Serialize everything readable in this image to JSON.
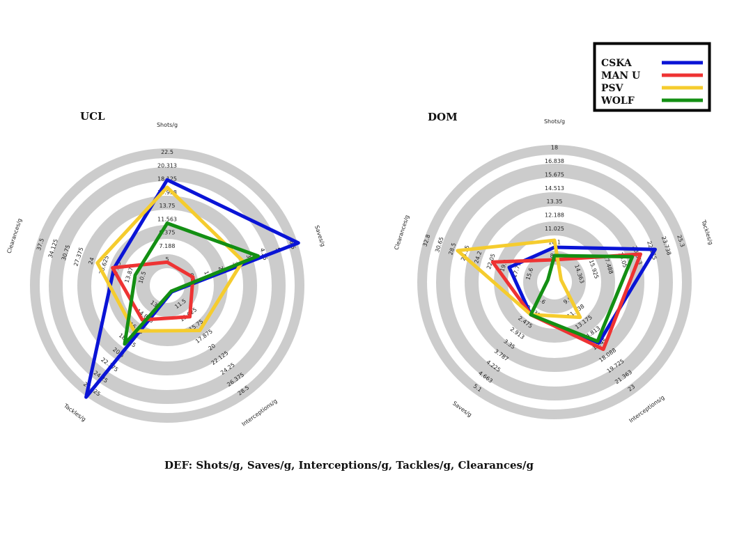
{
  "caption": "DEF: Shots/g, Saves/g, Interceptions/g, Tackles/g, Clearances/g",
  "legend": [
    {
      "name": "CSKA",
      "color": "#0a14d6"
    },
    {
      "name": "MAN U",
      "color": "#ee3333"
    },
    {
      "name": "PSV",
      "color": "#f5cc2e"
    },
    {
      "name": "WOLF",
      "color": "#138f13"
    }
  ],
  "chart_data": [
    {
      "type": "radar",
      "title": "UCL",
      "axes": [
        {
          "label": "Shots/g",
          "min": 5,
          "max": 22.5,
          "ticks": [
            "5",
            "7.188",
            "9.375",
            "11.563",
            "13.75",
            "15.938",
            "18.125",
            "20.313",
            "22.5"
          ]
        },
        {
          "label": "Saves/g",
          "min": 0,
          "max": 6.5,
          "ticks": [
            "0.5",
            "1",
            "2",
            "3",
            "3.5",
            "4.25",
            "5",
            "6.5"
          ]
        },
        {
          "label": "Interceptions/g",
          "min": 11.5,
          "max": 28.5,
          "ticks": [
            "11.5",
            "13.625",
            "15.75",
            "17.875",
            "20",
            "22.125",
            "24.25",
            "26.375",
            "28.5"
          ]
        },
        {
          "label": "Tackles/g",
          "min": 10.5,
          "max": 26.75,
          "ticks": [
            "13",
            "14.875",
            "16.75",
            "18.625",
            "20.5",
            "22.375",
            "24.25",
            "26.125"
          ]
        },
        {
          "label": "Clearances/g",
          "min": 10.5,
          "max": 37.5,
          "ticks": [
            "10.5",
            "13.875",
            "17.25",
            "20.625",
            "24",
            "27.375",
            "30.75",
            "34.125",
            "37.5"
          ]
        }
      ],
      "series": [
        {
          "name": "CSKA",
          "values": [
            18.2,
            6.5,
            11.6,
            26.75,
            20.6
          ]
        },
        {
          "name": "MAN U",
          "values": [
            7.2,
            1.0,
            15.6,
            14.9,
            20.9
          ]
        },
        {
          "name": "PSV",
          "values": [
            17.2,
            3.6,
            17.8,
            16.6,
            24.2
          ]
        },
        {
          "name": "WOLF",
          "values": [
            12.4,
            4.4,
            11.5,
            18.6,
            16.0
          ]
        }
      ]
    },
    {
      "type": "radar",
      "title": "DOM",
      "axes": [
        {
          "label": "Shots/g",
          "min": 8.7,
          "max": 18,
          "ticks": [
            "8.7",
            "10.1",
            "11.025",
            "12.188",
            "13.35",
            "14.513",
            "15.675",
            "16.838",
            "18"
          ]
        },
        {
          "label": "Tackles/g",
          "min": 11.8,
          "max": 25.3,
          "ticks": [
            "14.363",
            "15.925",
            "17.488",
            "19.05",
            "20.613",
            "22.175",
            "23.738",
            "25.3"
          ]
        },
        {
          "label": "Interceptions/g",
          "min": 9.9,
          "max": 23,
          "ticks": [
            "9.9",
            "11.538",
            "13.175",
            "14.813",
            "16.45",
            "18.088",
            "19.725",
            "21.363",
            "23"
          ]
        },
        {
          "label": "Saves/g",
          "min": 1.6,
          "max": 5.1,
          "ticks": [
            "1.6",
            "2.038",
            "2.475",
            "2.913",
            "3.35",
            "3.787",
            "4.225",
            "4.663",
            "5.1"
          ]
        },
        {
          "label": "Clearances/g",
          "min": 15.6,
          "max": 32.8,
          "ticks": [
            "15.6",
            "17.75",
            "19.9",
            "22.05",
            "24.2",
            "26.35",
            "28.5",
            "30.65",
            "32.8"
          ]
        }
      ],
      "series": [
        {
          "name": "CSKA",
          "values": [
            10.7,
            22.1,
            16.8,
            2.5,
            21.0
          ]
        },
        {
          "name": "MAN U",
          "values": [
            9.8,
            20.5,
            17.6,
            2.5,
            23.3
          ]
        },
        {
          "name": "PSV",
          "values": [
            11.2,
            11.8,
            13.6,
            2.5,
            28.2
          ]
        },
        {
          "name": "WOLF",
          "values": [
            10.1,
            19.6,
            16.6,
            2.5,
            15.6
          ]
        }
      ]
    }
  ]
}
